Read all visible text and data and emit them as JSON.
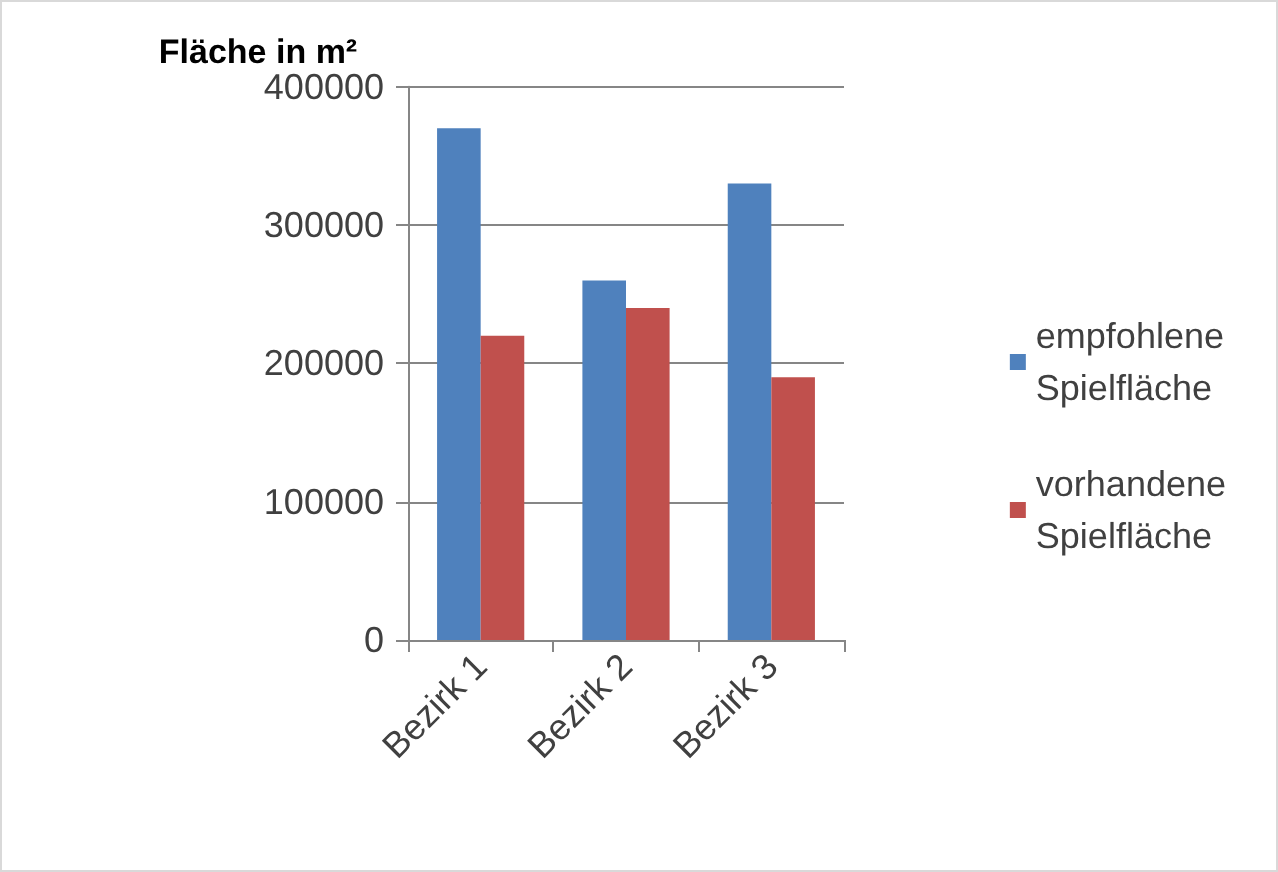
{
  "chart_data": {
    "type": "bar",
    "ylabel": "Fläche in m²",
    "categories": [
      "Bezirk 1",
      "Bezirk 2",
      "Bezirk 3"
    ],
    "series": [
      {
        "name": "empfohlene Spielfläche",
        "color": "#4f81bd",
        "values": [
          370000,
          260000,
          330000
        ]
      },
      {
        "name": "vorhandene Spielfläche",
        "color": "#c0504d",
        "values": [
          220000,
          240000,
          190000
        ]
      }
    ],
    "ylim": [
      0,
      400000
    ],
    "yticks": [
      0,
      100000,
      200000,
      300000,
      400000
    ],
    "grid": "y",
    "legend": "right"
  }
}
